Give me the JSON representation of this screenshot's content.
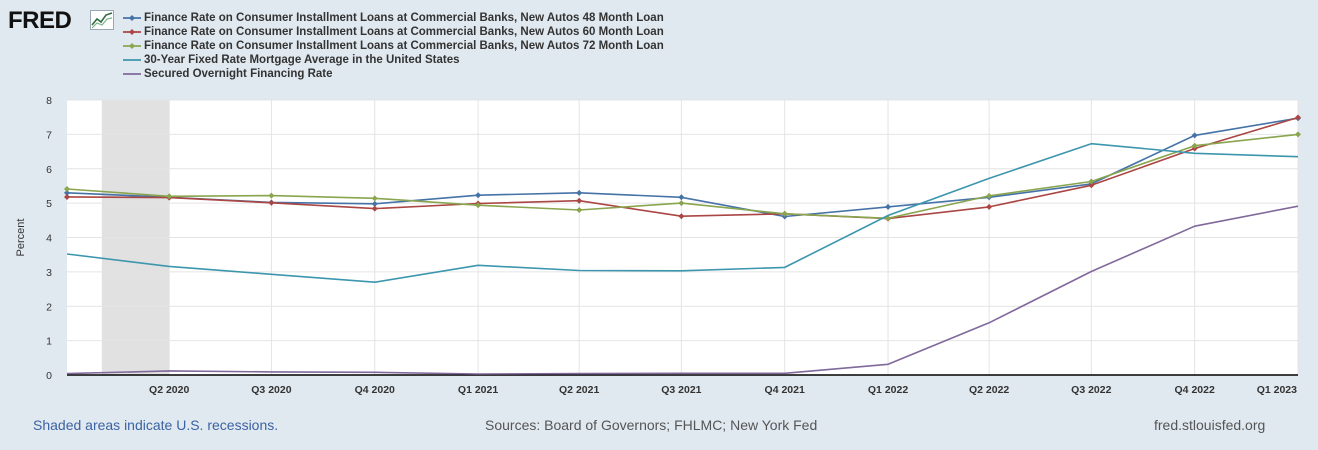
{
  "logo": {
    "text": "FRED"
  },
  "footer": {
    "note": "Shaded areas indicate U.S. recessions.",
    "sources": "Sources: Board of Governors; FHLMC; New York Fed",
    "url": "fred.stlouisfed.org"
  },
  "chart_data": {
    "type": "line",
    "title": "",
    "xlabel": "",
    "ylabel": "Percent",
    "ylim": [
      0,
      8
    ],
    "yticks": [
      0,
      1,
      2,
      3,
      4,
      5,
      6,
      7,
      8
    ],
    "grid": true,
    "legend_position": "top-left",
    "x": [
      "2020-01-01",
      "2020-04-01",
      "2020-07-01",
      "2020-10-01",
      "2021-01-01",
      "2021-04-01",
      "2021-07-01",
      "2021-10-01",
      "2022-01-01",
      "2022-04-01",
      "2022-07-01",
      "2022-10-01",
      "2023-01-01"
    ],
    "x_ticks": [
      {
        "date": "2020-04-01",
        "label": "Q2 2020"
      },
      {
        "date": "2020-07-01",
        "label": "Q3 2020"
      },
      {
        "date": "2020-10-01",
        "label": "Q4 2020"
      },
      {
        "date": "2021-01-01",
        "label": "Q1 2021"
      },
      {
        "date": "2021-04-01",
        "label": "Q2 2021"
      },
      {
        "date": "2021-07-01",
        "label": "Q3 2021"
      },
      {
        "date": "2021-10-01",
        "label": "Q4 2021"
      },
      {
        "date": "2022-01-01",
        "label": "Q1 2022"
      },
      {
        "date": "2022-04-01",
        "label": "Q2 2022"
      },
      {
        "date": "2022-07-01",
        "label": "Q3 2022"
      },
      {
        "date": "2022-10-01",
        "label": "Q4 2022"
      },
      {
        "date": "2023-01-01",
        "label": "Q1 2023"
      }
    ],
    "recession": {
      "start": "2020-02-01",
      "end": "2020-04-01",
      "color": "#e1e1e1"
    },
    "series": [
      {
        "name": "Finance Rate on Consumer Installment Loans at Commercial Banks, New Autos 48 Month Loan",
        "color": "#4572a7",
        "markers": true,
        "values": [
          5.3,
          5.17,
          5.02,
          4.98,
          5.23,
          5.3,
          5.17,
          4.61,
          4.89,
          5.17,
          5.56,
          6.97,
          7.47
        ]
      },
      {
        "name": "Finance Rate on Consumer Installment Loans at Commercial Banks, New Autos 60 Month Loan",
        "color": "#aa4643",
        "markers": true,
        "values": [
          5.18,
          5.16,
          5.01,
          4.84,
          4.99,
          5.07,
          4.62,
          4.69,
          4.55,
          4.89,
          5.52,
          6.59,
          7.49
        ]
      },
      {
        "name": "Finance Rate on Consumer Installment Loans at Commercial Banks, New Autos 72 Month Loan",
        "color": "#89a54e",
        "markers": true,
        "values": [
          5.41,
          5.2,
          5.22,
          5.14,
          4.94,
          4.8,
          5.0,
          4.69,
          4.56,
          5.21,
          5.63,
          6.67,
          7.0
        ]
      },
      {
        "name": "30-Year Fixed Rate Mortgage Average in the United States",
        "color": "#3d96ae",
        "markers": false,
        "values": [
          3.52,
          3.16,
          2.93,
          2.7,
          3.19,
          3.04,
          3.03,
          3.13,
          4.64,
          5.72,
          6.73,
          6.45,
          6.35
        ]
      },
      {
        "name": "Secured Overnight Financing Rate",
        "color": "#80699b",
        "markers": false,
        "values": [
          0.04,
          0.12,
          0.09,
          0.08,
          0.03,
          0.04,
          0.05,
          0.05,
          0.31,
          1.52,
          3.01,
          4.33,
          4.91
        ]
      }
    ]
  }
}
